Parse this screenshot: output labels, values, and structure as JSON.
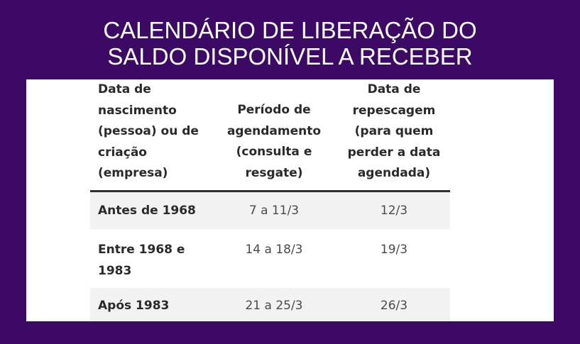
{
  "title": {
    "line1": "CALENDÁRIO DE LIBERAÇÃO DO",
    "line2": "SALDO DISPONÍVEL A RECEBER"
  },
  "table": {
    "headers": {
      "birth": [
        "Data de",
        "nascimento",
        "(pessoa) ou de",
        "criação",
        "(empresa)"
      ],
      "period": [
        "Período de",
        "agendamento",
        "(consulta e",
        "resgate)"
      ],
      "repescagem": [
        "Data de",
        "repescagem",
        "(para quem",
        "perder a data",
        "agendada)"
      ]
    },
    "rows": [
      {
        "label": [
          "Antes de 1968"
        ],
        "period": "7 a 11/3",
        "repescagem": "12/3"
      },
      {
        "label": [
          "Entre 1968 e",
          "1983"
        ],
        "period": "14 a 18/3",
        "repescagem": "19/3"
      },
      {
        "label": [
          "Após 1983"
        ],
        "period": "21 a 25/3",
        "repescagem": "26/3"
      }
    ]
  },
  "colors": {
    "background": "#3c0a64",
    "title_text": "#ffffff",
    "panel": "#ffffff",
    "row_shade": "#f2f2f2",
    "header_rule": "#2e2e2e"
  }
}
